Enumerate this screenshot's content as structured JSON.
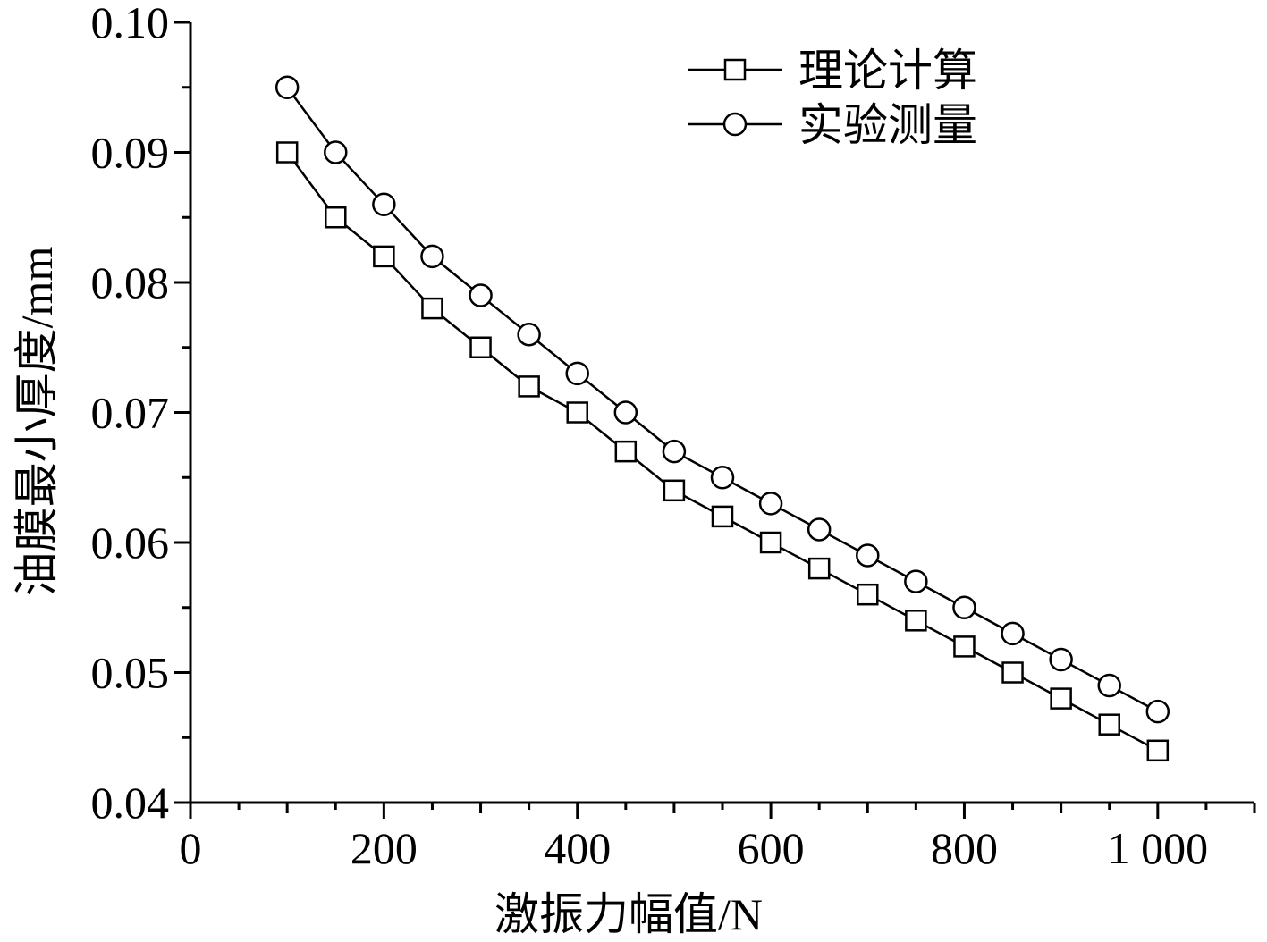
{
  "chart_data": {
    "type": "line",
    "xlabel": "激振力幅值/N",
    "ylabel": "油膜最小厚度/mm",
    "xlim": [
      0,
      1100
    ],
    "ylim": [
      0.04,
      0.1
    ],
    "x_ticks": [
      0,
      200,
      400,
      600,
      800,
      1000
    ],
    "x_tick_labels": [
      "0",
      "200",
      "400",
      "600",
      "800",
      "1 000"
    ],
    "y_ticks": [
      0.04,
      0.05,
      0.06,
      0.07,
      0.08,
      0.09,
      0.1
    ],
    "y_tick_labels": [
      "0.04",
      "0.05",
      "0.06",
      "0.07",
      "0.08",
      "0.09",
      "0.10"
    ],
    "grid": false,
    "legend_position": "top-right",
    "x": [
      100,
      150,
      200,
      250,
      300,
      350,
      400,
      450,
      500,
      550,
      600,
      650,
      700,
      750,
      800,
      850,
      900,
      950,
      1000
    ],
    "series": [
      {
        "name": "理论计算",
        "marker": "square",
        "values": [
          0.09,
          0.085,
          0.082,
          0.078,
          0.075,
          0.072,
          0.07,
          0.067,
          0.064,
          0.062,
          0.06,
          0.058,
          0.056,
          0.054,
          0.052,
          0.05,
          0.048,
          0.046,
          0.044
        ]
      },
      {
        "name": "实验测量",
        "marker": "circle",
        "values": [
          0.095,
          0.09,
          0.086,
          0.082,
          0.079,
          0.076,
          0.073,
          0.07,
          0.067,
          0.065,
          0.063,
          0.061,
          0.059,
          0.057,
          0.055,
          0.053,
          0.051,
          0.049,
          0.047
        ]
      }
    ]
  }
}
